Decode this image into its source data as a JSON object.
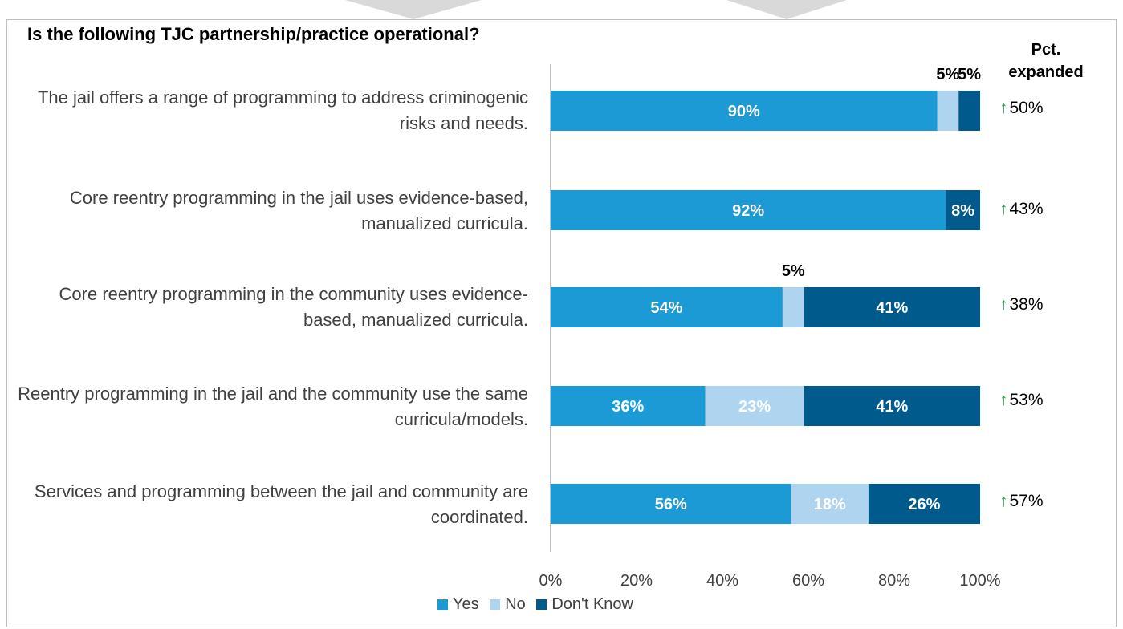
{
  "chart_data": {
    "type": "bar",
    "orientation": "horizontal-stacked-100",
    "title": "Is the following TJC partnership/practice operational?",
    "categories": [
      "The jail offers a range of programming to address criminogenic risks and needs.",
      "Core reentry programming in the jail uses evidence-based, manualized curricula.",
      "Core reentry programming in the community uses evidence-based, manualized curricula.",
      "Reentry programming in the jail and the community use the same curricula/models.",
      "Services and programming between the jail and community are coordinated."
    ],
    "series": [
      {
        "name": "Yes",
        "color": "#1b9ad6",
        "values": [
          90,
          92,
          54,
          36,
          56
        ],
        "labels": [
          "90%",
          "92%",
          "54%",
          "36%",
          "56%"
        ]
      },
      {
        "name": "No",
        "color": "#aed4ef",
        "values": [
          5,
          0,
          5,
          23,
          18
        ],
        "labels": [
          "5%",
          "",
          "5%",
          "23%",
          "18%"
        ]
      },
      {
        "name": "Don't Know",
        "color": "#005a8c",
        "values": [
          5,
          8,
          41,
          41,
          26
        ],
        "labels": [
          "5%",
          "8%",
          "41%",
          "41%",
          "26%"
        ]
      }
    ],
    "xlim": [
      0,
      100
    ],
    "x_ticks": [
      "0%",
      "20%",
      "40%",
      "60%",
      "80%",
      "100%"
    ],
    "legend_position": "bottom",
    "pct_expanded": {
      "header": "Pct. expanded",
      "values": [
        "50%",
        "43%",
        "38%",
        "53%",
        "57%"
      ]
    }
  }
}
